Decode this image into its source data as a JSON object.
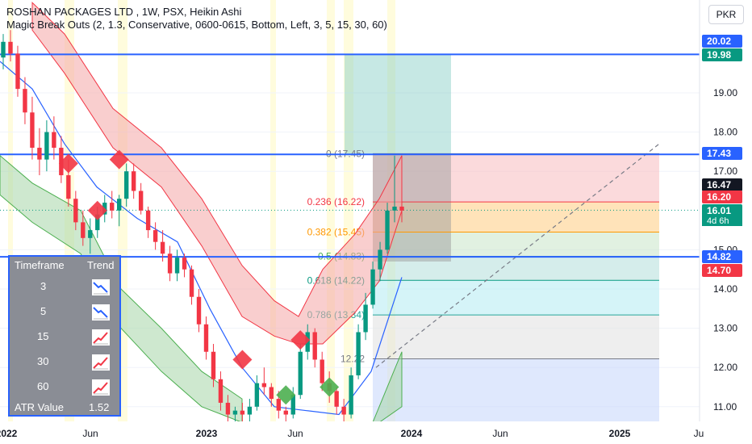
{
  "header": {
    "symbol_line": "ROSHAN PACKAGES LTD , 1W, PSX, Heikin Ashi",
    "indicator_line": "Magic Break Outs (2, 1.3, Conservative, 0600-0615, Bottom, Left, 3, 5, 15, 30, 60)",
    "currency": "PKR"
  },
  "chart_data": {
    "type": "candlestick",
    "series_type": "Heikin Ashi",
    "timeframe": "1W",
    "exchange": "PSX",
    "x_tick_labels": [
      "2022",
      "Jun",
      "2023",
      "Jun",
      "2024",
      "Jun",
      "2025",
      "Ju"
    ],
    "y_tick_labels": [
      "11.00",
      "12.00",
      "13.00",
      "14.00",
      "15.00",
      "17.00",
      "18.00",
      "19.00"
    ],
    "ylim": [
      10.6,
      21.3
    ],
    "price_tags": [
      {
        "label": "20.02",
        "value": 20.02,
        "color": "#2962ff"
      },
      {
        "label": "19.98",
        "value": 19.98,
        "color": "#089981"
      },
      {
        "label": "17.43",
        "value": 17.43,
        "color": "#2962ff"
      },
      {
        "label": "16.47",
        "value": 16.47,
        "color": "#131722"
      },
      {
        "label": "16.20",
        "value": 16.2,
        "color": "#f23645"
      },
      {
        "label": "16.01",
        "value": 16.01,
        "color": "#089981"
      },
      {
        "label": "14.82",
        "value": 14.82,
        "color": "#2962ff"
      },
      {
        "label": "14.70",
        "value": 14.7,
        "color": "#f23645"
      }
    ],
    "countdown": "4d 6h",
    "horizontal_levels": [
      19.98,
      17.43,
      14.82
    ],
    "fib_levels": [
      {
        "label": "0 (17.45)",
        "value": 17.45,
        "color": "#787b86"
      },
      {
        "label": "0.236 (16.22)",
        "value": 16.22,
        "color": "#f23645"
      },
      {
        "label": "0.382 (15.45)",
        "value": 15.45,
        "color": "#ff9800"
      },
      {
        "label": "0.5 (14.83)",
        "value": 14.83,
        "color": "#4caf50"
      },
      {
        "label": "0.618 (14.22)",
        "value": 14.22,
        "color": "#089981"
      },
      {
        "label": "0.786 (13.34)",
        "value": 13.34,
        "color": "#26a69a"
      },
      {
        "label": "12.22",
        "value": 12.22,
        "color": "#787b86"
      }
    ],
    "candles": [
      [
        19.9,
        20.5,
        19.6,
        20.3
      ],
      [
        20.3,
        20.6,
        19.8,
        20.0
      ],
      [
        20.0,
        20.2,
        18.9,
        19.1
      ],
      [
        19.1,
        19.4,
        18.2,
        18.5
      ],
      [
        18.5,
        18.9,
        17.3,
        17.6
      ],
      [
        17.6,
        18.1,
        16.9,
        17.3
      ],
      [
        17.3,
        18.3,
        17.0,
        18.0
      ],
      [
        18.0,
        18.4,
        17.3,
        17.6
      ],
      [
        17.6,
        17.9,
        16.7,
        16.9
      ],
      [
        16.9,
        17.3,
        16.1,
        16.3
      ],
      [
        16.3,
        16.5,
        15.5,
        15.7
      ],
      [
        15.7,
        16.0,
        15.1,
        15.3
      ],
      [
        15.3,
        15.8,
        14.9,
        15.5
      ],
      [
        15.5,
        16.1,
        15.3,
        15.9
      ],
      [
        15.9,
        16.4,
        15.7,
        16.2
      ],
      [
        16.2,
        16.5,
        15.8,
        16.0
      ],
      [
        16.0,
        16.4,
        15.6,
        16.3
      ],
      [
        16.3,
        17.2,
        16.1,
        17.0
      ],
      [
        17.0,
        17.2,
        16.3,
        16.5
      ],
      [
        16.5,
        16.7,
        15.9,
        16.0
      ],
      [
        16.0,
        16.1,
        15.3,
        15.5
      ],
      [
        15.5,
        15.7,
        15.0,
        15.2
      ],
      [
        15.2,
        15.5,
        14.7,
        14.9
      ],
      [
        14.9,
        15.1,
        14.2,
        14.4
      ],
      [
        14.4,
        15.0,
        14.2,
        14.8
      ],
      [
        14.8,
        14.9,
        14.3,
        14.5
      ],
      [
        14.5,
        14.6,
        13.6,
        13.8
      ],
      [
        13.8,
        14.0,
        12.9,
        13.1
      ],
      [
        13.1,
        13.3,
        12.2,
        12.4
      ],
      [
        12.4,
        12.6,
        11.5,
        11.7
      ],
      [
        11.7,
        11.9,
        10.9,
        11.1
      ],
      [
        11.1,
        11.3,
        10.6,
        10.8
      ],
      [
        10.8,
        11.0,
        10.6,
        10.9
      ],
      [
        10.9,
        11.1,
        10.6,
        10.8
      ],
      [
        10.8,
        11.2,
        10.6,
        11.0
      ],
      [
        11.0,
        11.8,
        10.9,
        11.6
      ],
      [
        11.6,
        12.0,
        11.3,
        11.5
      ],
      [
        11.5,
        11.6,
        11.0,
        11.2
      ],
      [
        11.2,
        11.4,
        10.7,
        10.9
      ],
      [
        10.9,
        11.0,
        10.6,
        10.8
      ],
      [
        10.8,
        11.5,
        10.7,
        11.3
      ],
      [
        11.3,
        12.6,
        11.2,
        12.4
      ],
      [
        12.4,
        13.1,
        12.2,
        12.9
      ],
      [
        12.9,
        13.0,
        12.0,
        12.2
      ],
      [
        12.2,
        12.4,
        11.4,
        11.6
      ],
      [
        11.6,
        11.9,
        11.1,
        11.4
      ],
      [
        11.4,
        11.5,
        10.8,
        11.0
      ],
      [
        11.0,
        11.2,
        10.6,
        10.8
      ],
      [
        10.8,
        12.0,
        10.7,
        11.8
      ],
      [
        11.8,
        13.1,
        11.7,
        12.9
      ],
      [
        12.9,
        13.9,
        12.7,
        13.6
      ],
      [
        13.6,
        14.7,
        13.5,
        14.5
      ],
      [
        14.5,
        15.2,
        14.2,
        15.0
      ],
      [
        15.0,
        16.2,
        14.9,
        16.0
      ],
      [
        16.0,
        17.4,
        15.7,
        16.1
      ],
      [
        16.1,
        16.5,
        15.7,
        16.0
      ]
    ],
    "breakout_markers": [
      {
        "type": "bearish",
        "index": 9,
        "price": 17.2
      },
      {
        "type": "bearish",
        "index": 16,
        "price": 17.3
      },
      {
        "type": "bearish",
        "index": 13,
        "price": 16.0
      },
      {
        "type": "bearish",
        "index": 33,
        "price": 12.2
      },
      {
        "type": "bearish",
        "index": 41,
        "price": 12.7
      },
      {
        "type": "bullish",
        "index": 39,
        "price": 11.3
      },
      {
        "type": "bullish",
        "index": 45,
        "price": 11.5
      }
    ]
  },
  "trend_table": {
    "header_timeframe": "Timeframe",
    "header_trend": "Trend",
    "rows": [
      {
        "timeframe": "3",
        "trend": "down"
      },
      {
        "timeframe": "5",
        "trend": "down"
      },
      {
        "timeframe": "15",
        "trend": "up"
      },
      {
        "timeframe": "30",
        "trend": "up"
      },
      {
        "timeframe": "60",
        "trend": "up"
      }
    ],
    "atr_label": "ATR Value",
    "atr_value": "1.52"
  },
  "colors": {
    "bull": "#089981",
    "bear": "#f23645",
    "level_line": "#2962ff",
    "axis_text": "#131722"
  }
}
